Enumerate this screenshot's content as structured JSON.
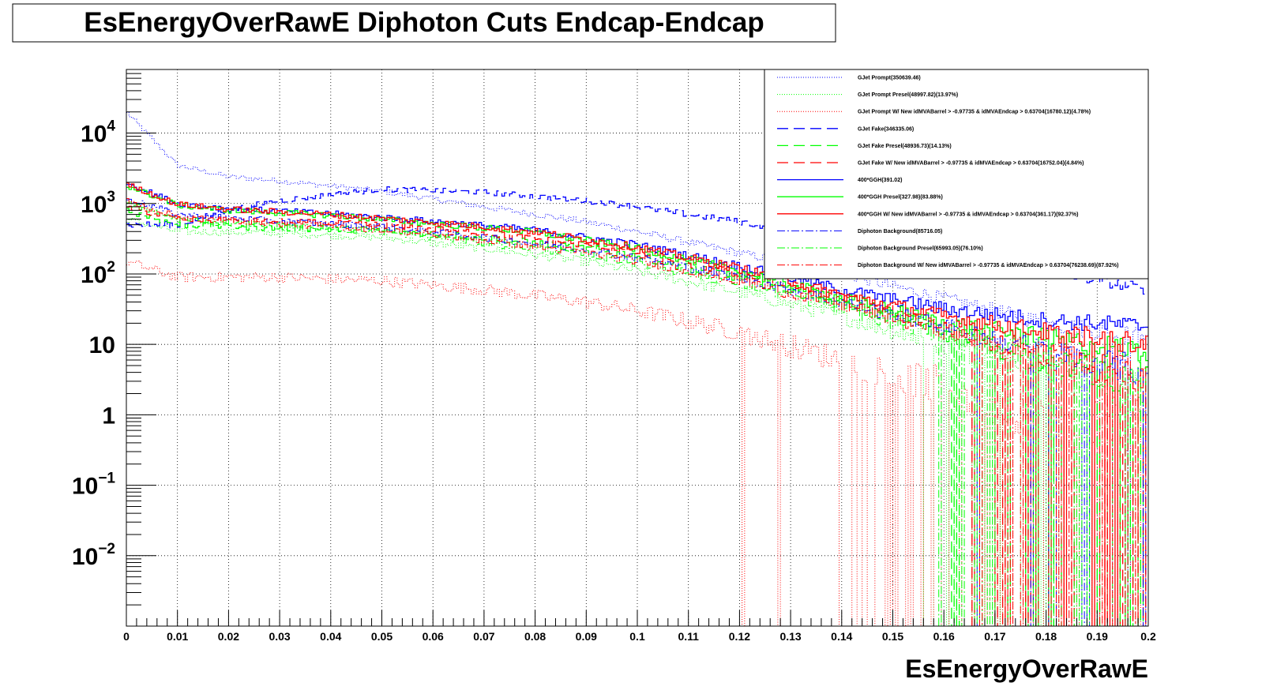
{
  "chart_data": {
    "type": "line",
    "title": "EsEnergyOverRawE Diphoton Cuts Endcap-Endcap",
    "xlabel": "EsEnergyOverRawE",
    "ylabel": "",
    "xlim": [
      0,
      0.2
    ],
    "ylim": [
      0.001,
      80000
    ],
    "yscale": "log",
    "grid": true,
    "legend_position": "top-right",
    "x_ticks": [
      "0",
      "0.01",
      "0.02",
      "0.03",
      "0.04",
      "0.05",
      "0.06",
      "0.07",
      "0.08",
      "0.09",
      "0.1",
      "0.11",
      "0.12",
      "0.13",
      "0.14",
      "0.15",
      "0.16",
      "0.17",
      "0.18",
      "0.19",
      "0.2"
    ],
    "y_ticks": [
      {
        "value": 0.01,
        "base": "10",
        "exp": "−2"
      },
      {
        "value": 0.1,
        "base": "10",
        "exp": "−1"
      },
      {
        "value": 1,
        "base": "1",
        "exp": ""
      },
      {
        "value": 10,
        "base": "10",
        "exp": ""
      },
      {
        "value": 100,
        "base": "10",
        "exp": "2"
      },
      {
        "value": 1000,
        "base": "10",
        "exp": "3"
      },
      {
        "value": 10000,
        "base": "10",
        "exp": "4"
      }
    ],
    "series": [
      {
        "name": "GJet Prompt(350639.46)",
        "color": "#0000ff",
        "dash": "1,2",
        "width": 1,
        "x": [
          0,
          0.01,
          0.02,
          0.03,
          0.05,
          0.07,
          0.09,
          0.1,
          0.12,
          0.14,
          0.16,
          0.18,
          0.2
        ],
        "y": [
          20000,
          3500,
          2400,
          2100,
          1500,
          900,
          550,
          400,
          200,
          100,
          45,
          20,
          12
        ]
      },
      {
        "name": "GJet Prompt Presel(48997.82)(13.97%)",
        "color": "#00ff00",
        "dash": "1,2",
        "width": 1,
        "x": [
          0,
          0.01,
          0.03,
          0.05,
          0.07,
          0.09,
          0.1,
          0.12,
          0.14,
          0.16,
          0.18,
          0.2
        ],
        "y": [
          600,
          400,
          380,
          330,
          230,
          150,
          110,
          55,
          25,
          10,
          4,
          2
        ]
      },
      {
        "name": "GJet Prompt W/ New idMVABarrel > -0.97735 & idMVAEndcap > 0.63704(16780.12)(4.78%)",
        "color": "#ff0000",
        "dash": "1,2",
        "width": 1,
        "x": [
          0,
          0.01,
          0.03,
          0.05,
          0.07,
          0.09,
          0.1,
          0.12,
          0.14,
          0.16,
          0.18,
          0.2
        ],
        "y": [
          150,
          90,
          90,
          80,
          60,
          40,
          30,
          15,
          6,
          2.5,
          1,
          0.5
        ]
      },
      {
        "name": "GJet Fake(346335.06)",
        "color": "#0000ff",
        "dash": "14,7",
        "width": 1.3,
        "x": [
          0,
          0.01,
          0.02,
          0.03,
          0.05,
          0.07,
          0.09,
          0.1,
          0.11,
          0.12,
          0.13,
          0.14,
          0.16,
          0.18,
          0.2
        ],
        "y": [
          500,
          500,
          800,
          1100,
          1600,
          1450,
          1100,
          900,
          700,
          550,
          420,
          320,
          190,
          110,
          60
        ]
      },
      {
        "name": "GJet Fake Presel(48936.73)(14.13%)",
        "color": "#00ff00",
        "dash": "14,7",
        "width": 1.3,
        "x": [
          0,
          0.01,
          0.03,
          0.05,
          0.07,
          0.09,
          0.1,
          0.12,
          0.14,
          0.16,
          0.18,
          0.2
        ],
        "y": [
          800,
          500,
          450,
          420,
          330,
          230,
          180,
          90,
          40,
          15,
          6,
          3
        ]
      },
      {
        "name": "GJet Fake W/ New idMVABarrel > -0.97735 & idMVAEndcap > 0.63704(16752.04)(4.84%)",
        "color": "#ff0000",
        "dash": "14,7",
        "width": 1.3,
        "x": [
          0,
          0.01,
          0.03,
          0.05,
          0.07,
          0.09,
          0.1,
          0.12,
          0.14,
          0.16,
          0.18,
          0.2
        ],
        "y": [
          900,
          600,
          550,
          500,
          380,
          260,
          200,
          100,
          45,
          18,
          7,
          3
        ]
      },
      {
        "name": "400*GGH(391.02)",
        "color": "#0000ff",
        "dash": "",
        "width": 1.3,
        "x": [
          0,
          0.01,
          0.02,
          0.04,
          0.06,
          0.08,
          0.1,
          0.12,
          0.14,
          0.16,
          0.18,
          0.2
        ],
        "y": [
          2000,
          1000,
          850,
          720,
          560,
          420,
          260,
          130,
          60,
          32,
          22,
          18
        ]
      },
      {
        "name": "400*GGH Presel(327.98)(83.88%)",
        "color": "#00ff00",
        "dash": "",
        "width": 1.3,
        "x": [
          0,
          0.01,
          0.02,
          0.04,
          0.06,
          0.08,
          0.1,
          0.12,
          0.14,
          0.16,
          0.18,
          0.2
        ],
        "y": [
          1800,
          950,
          800,
          680,
          520,
          390,
          230,
          110,
          45,
          20,
          12,
          8
        ]
      },
      {
        "name": "400*GGH W/ New idMVABarrel > -0.97735 & idMVAEndcap > 0.63704(361.17)(92.37%)",
        "color": "#ff0000",
        "dash": "",
        "width": 1.3,
        "x": [
          0,
          0.01,
          0.02,
          0.04,
          0.06,
          0.08,
          0.1,
          0.12,
          0.14,
          0.16,
          0.18,
          0.2
        ],
        "y": [
          1900,
          980,
          830,
          700,
          540,
          400,
          240,
          120,
          50,
          25,
          15,
          10
        ]
      },
      {
        "name": "Diphoton Background(85716.05)",
        "color": "#0000ff",
        "dash": "10,3,2,3",
        "width": 1,
        "x": [
          0,
          0.01,
          0.03,
          0.05,
          0.07,
          0.09,
          0.1,
          0.12,
          0.14,
          0.16,
          0.18,
          0.2
        ],
        "y": [
          1200,
          700,
          560,
          470,
          330,
          220,
          170,
          90,
          40,
          18,
          8,
          4
        ]
      },
      {
        "name": "Diphoton Background Presel(65993.05)(76.10%)",
        "color": "#00ff00",
        "dash": "10,3,2,3",
        "width": 1,
        "x": [
          0,
          0.01,
          0.03,
          0.05,
          0.07,
          0.09,
          0.1,
          0.12,
          0.14,
          0.16,
          0.18,
          0.2
        ],
        "y": [
          1000,
          600,
          480,
          400,
          280,
          190,
          145,
          75,
          33,
          14,
          6,
          3
        ]
      },
      {
        "name": "Diphoton Background W/ New idMVABarrel > -0.97735 & idMVAEndcap > 0.63704(76238.69)(87.92%)",
        "color": "#ff0000",
        "dash": "10,3,2,3",
        "width": 1,
        "x": [
          0,
          0.01,
          0.03,
          0.05,
          0.07,
          0.09,
          0.1,
          0.12,
          0.14,
          0.16,
          0.18,
          0.2
        ],
        "y": [
          1100,
          650,
          520,
          430,
          300,
          200,
          155,
          80,
          36,
          16,
          7,
          3.5
        ]
      }
    ]
  }
}
